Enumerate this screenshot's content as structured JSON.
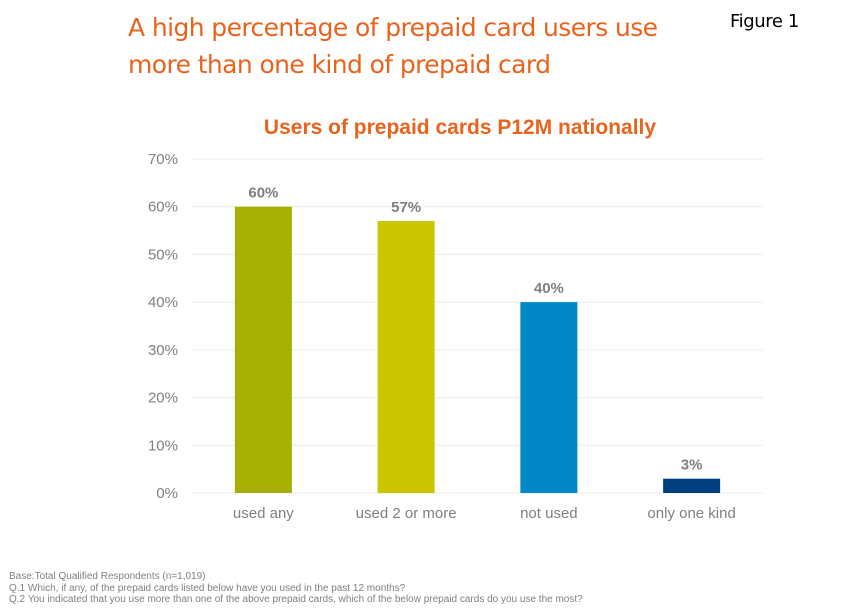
{
  "slide": {
    "headline": "A high percentage of prepaid card users use more than one kind of prepaid card",
    "figure_label": "Figure 1",
    "footnotes": [
      "Base:Total Qualified Respondents (n=1,019)",
      "Q.1 Which, if any, of the prepaid cards listed below have you used in the past 12 months?",
      "Q.2 You indicated that you use more than one of the above prepaid cards, which of the below prepaid cards do you use the most?"
    ]
  },
  "chart_data": {
    "type": "bar",
    "title": "Users of prepaid cards P12M nationally",
    "xlabel": "",
    "ylabel": "",
    "categories": [
      "used any",
      "used 2 or more",
      "not used",
      "only one kind"
    ],
    "values": [
      60,
      57,
      40,
      3
    ],
    "data_labels": [
      "60%",
      "57%",
      "40%",
      "3%"
    ],
    "colors": [
      "#A5B000",
      "#CCC400",
      "#0088C8",
      "#004080"
    ],
    "ylim": [
      0,
      70
    ],
    "yticks": [
      0,
      10,
      20,
      30,
      40,
      50,
      60,
      70
    ],
    "ytick_labels": [
      "0%",
      "10%",
      "20%",
      "30%",
      "40%",
      "50%",
      "60%",
      "70%"
    ],
    "grid": true,
    "gridline_color": "#ececec",
    "legend": "none"
  }
}
